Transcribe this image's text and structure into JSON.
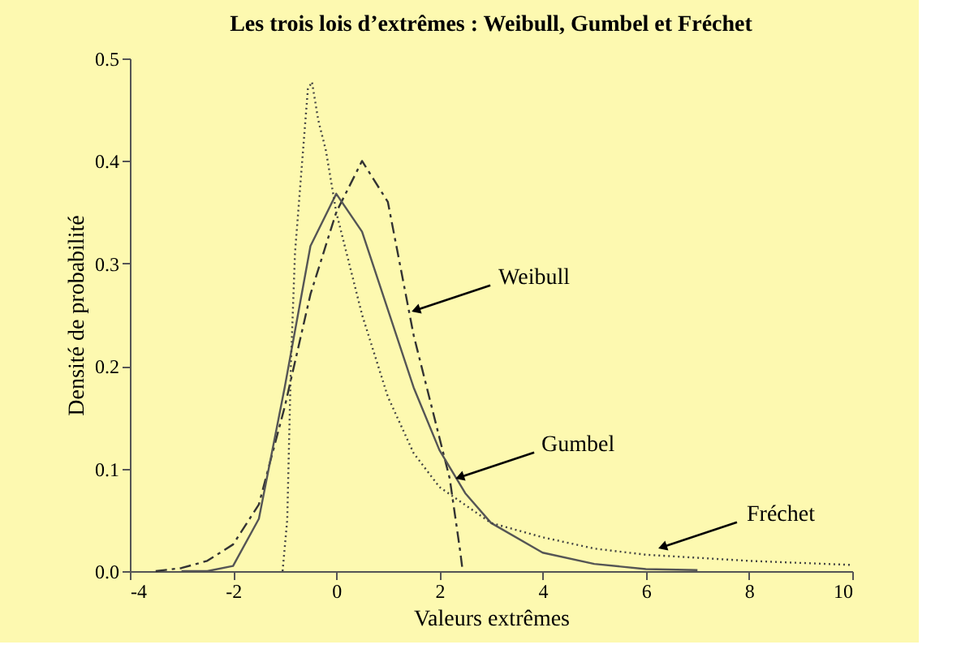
{
  "chart_data": {
    "type": "line",
    "title": "Les trois lois d’extrêmes : Weibull, Gumbel et Fréchet",
    "xlabel": "Valeurs extrêmes",
    "ylabel": "Densité de probabilité",
    "xlim": [
      -4,
      10
    ],
    "xticks": [
      -4,
      -2,
      0,
      2,
      4,
      6,
      8,
      10
    ],
    "ylim": [
      0,
      0.5
    ],
    "yticks": [
      {
        "value": 0,
        "label": "0.0"
      },
      0.1,
      0.2,
      0.3,
      0.4,
      0.5
    ],
    "grid": false,
    "marker": "none",
    "series": [
      {
        "color": "#333333",
        "line_style": "dashed",
        "x": [
          -3.5,
          -3,
          -2.5,
          -2,
          -1.5,
          -1,
          -0.5,
          0,
          0.5,
          1,
          1.5,
          2,
          2.2,
          2.4,
          2.45
        ],
        "values": [
          0,
          0.003,
          0.01,
          0.026,
          0.065,
          0.16,
          0.27,
          0.35,
          0.4,
          0.36,
          0.23,
          0.13,
          0.09,
          0.02,
          0
        ]
      },
      {
        "color": "#555555",
        "line_style": "solid",
        "x": [
          -3,
          -2.5,
          -2,
          -1.5,
          -1,
          -0.5,
          0,
          0.5,
          1,
          1.5,
          2,
          2.5,
          3,
          4,
          5,
          6,
          7
        ],
        "values": [
          0,
          0,
          0.005,
          0.051,
          0.179,
          0.317,
          0.368,
          0.331,
          0.255,
          0.179,
          0.118,
          0.076,
          0.047,
          0.018,
          0.007,
          0.002,
          0.001
        ]
      },
      {
        "color": "#444444",
        "line_style": "dotted",
        "x": [
          -1.04,
          -0.95,
          -0.88,
          -0.8,
          -0.66,
          -0.55,
          -0.47,
          -0.35,
          -0.2,
          0,
          0.5,
          1,
          1.5,
          2,
          3,
          4,
          5,
          6,
          8,
          10
        ],
        "values": [
          0,
          0.05,
          0.2,
          0.31,
          0.4,
          0.47,
          0.477,
          0.44,
          0.41,
          0.35,
          0.25,
          0.17,
          0.115,
          0.082,
          0.047,
          0.033,
          0.022,
          0.016,
          0.01,
          0.006
        ]
      }
    ],
    "annotations": [
      {
        "text": "Weibull",
        "x": 1.57,
        "y": 0.255
      },
      {
        "text": "Gumbel",
        "x": 2.42,
        "y": 0.092
      },
      {
        "text": "Fréchet",
        "x": 6.35,
        "y": 0.024
      }
    ]
  }
}
